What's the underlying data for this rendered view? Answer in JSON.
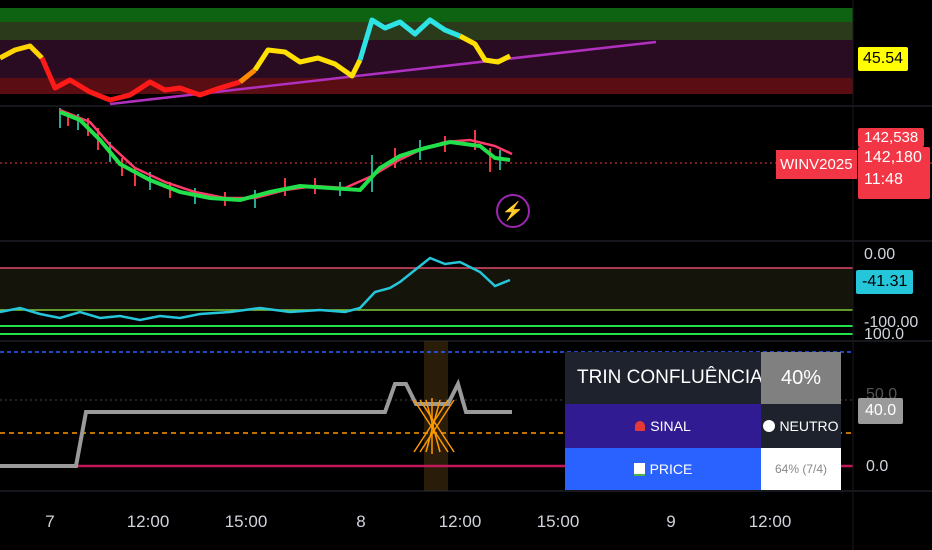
{
  "panels": {
    "top_osc": {
      "value_tag": "45.54",
      "tag_color": "#ffff00"
    },
    "price": {
      "symbol": "WINV2025",
      "last_price": "142,180",
      "countdown": "11:48",
      "high_price": "142,538",
      "accent": "#f23645"
    },
    "rsi": {
      "value_tag": "-41.31",
      "tag_color": "#26c6da",
      "ticks": [
        "0.00",
        "-100.00",
        "100.0"
      ]
    },
    "trin": {
      "ticks": [
        "50.0",
        "0.0"
      ],
      "value_tag": "40.0"
    }
  },
  "time_axis": {
    "labels": [
      "7",
      "12:00",
      "15:00",
      "8",
      "12:00",
      "15:00",
      "9",
      "12:00"
    ]
  },
  "trin_table": {
    "title": "TRIN CONFLUÊNCIA",
    "title_icon": "target-icon",
    "title_value": "40%",
    "signal_label": "SINAL",
    "signal_icon": "siren-icon",
    "signal_value": "NEUTRO",
    "signal_value_icon": "white-circle-icon",
    "price_label": "PRICE",
    "price_icon": "bar-chart-icon",
    "price_value": "64% (7/4)"
  },
  "icons": {
    "alert": "lightning-icon"
  }
}
